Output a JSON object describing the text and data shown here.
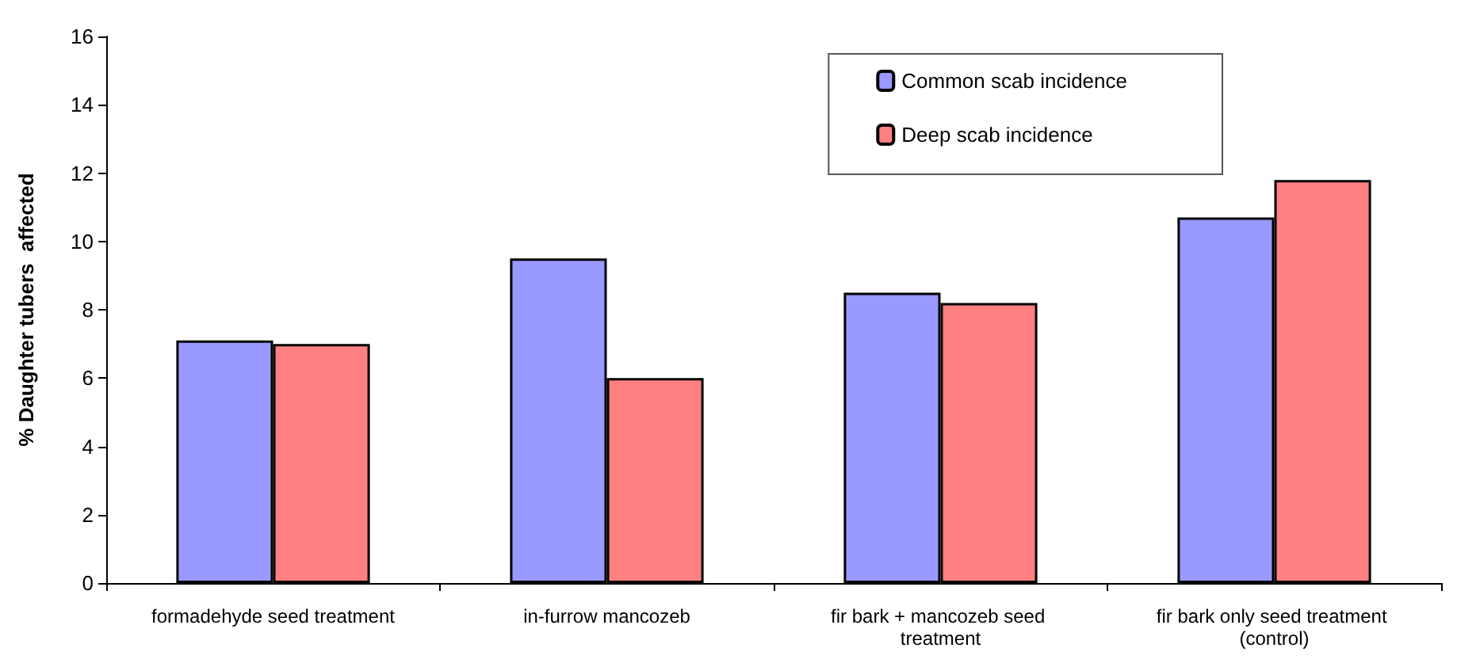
{
  "chart_data": {
    "type": "bar",
    "ylabel": "% Daughter tubers  affected",
    "categories": [
      "formadehyde seed treatment",
      "in-furrow mancozeb",
      "fir bark + mancozeb seed treatment",
      "fir bark only seed treatment (control)"
    ],
    "series": [
      {
        "name": "Common scab incidence",
        "color": "#9999ff",
        "values": [
          7.1,
          9.5,
          8.5,
          10.7
        ]
      },
      {
        "name": "Deep scab incidence",
        "color": "#ff8080",
        "values": [
          7.0,
          6.0,
          8.2,
          11.8
        ]
      }
    ],
    "ylim": [
      0,
      16
    ],
    "yticks": [
      0,
      2,
      4,
      6,
      8,
      10,
      12,
      14,
      16
    ],
    "grid": false,
    "legend": "top right"
  }
}
